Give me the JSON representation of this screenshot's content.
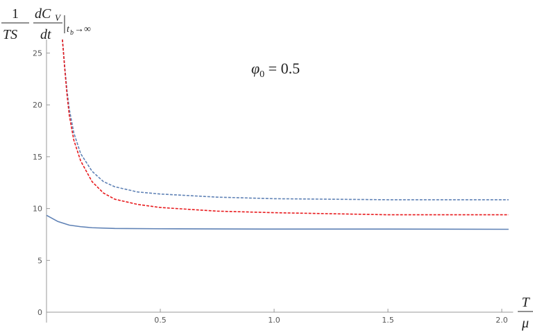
{
  "chart_data": {
    "type": "line",
    "annotation": {
      "symbol": "φ",
      "sub": "0",
      "rest": " = 0.5"
    },
    "y_label": {
      "num1": "1",
      "den1": "TS",
      "num2": "dC",
      "num2_sub": "V",
      "den2": "dt",
      "eval": "t",
      "eval_sub": "b",
      "eval_rest": "→∞"
    },
    "x_label": {
      "num": "T",
      "den": "μ"
    },
    "xlim": [
      0,
      2.05
    ],
    "ylim": [
      -1,
      26.3
    ],
    "xticks": [
      0.5,
      {
        "value": 1,
        "label": "1.0"
      },
      1.5,
      {
        "value": 2,
        "label": "2.0"
      }
    ],
    "yticks": [
      0,
      5,
      10,
      15,
      20,
      25
    ],
    "series": [
      {
        "color": "#5e81b5",
        "dash": false,
        "x": [
          0,
          0.05,
          0.1,
          0.15,
          0.2,
          0.3,
          0.5,
          1.0,
          1.5,
          2.03
        ],
        "values": [
          9.35,
          8.75,
          8.4,
          8.25,
          8.15,
          8.08,
          8.05,
          8.02,
          8.02,
          8.0
        ]
      },
      {
        "color": "#5e81b5",
        "dash": true,
        "x": [
          0.07,
          0.08,
          0.09,
          0.1,
          0.12,
          0.15,
          0.2,
          0.25,
          0.3,
          0.4,
          0.5,
          0.75,
          1.0,
          1.5,
          2.03
        ],
        "values": [
          26.3,
          23.7,
          21.4,
          19.6,
          17.3,
          15.3,
          13.6,
          12.6,
          12.1,
          11.6,
          11.4,
          11.1,
          10.95,
          10.85,
          10.85
        ]
      },
      {
        "color": "#e8191c",
        "dash": true,
        "x": [
          0.07,
          0.08,
          0.09,
          0.1,
          0.12,
          0.15,
          0.2,
          0.25,
          0.3,
          0.4,
          0.5,
          0.75,
          1.0,
          1.5,
          2.03
        ],
        "values": [
          26.3,
          23.5,
          21.0,
          19.0,
          16.6,
          14.6,
          12.6,
          11.5,
          10.9,
          10.4,
          10.1,
          9.75,
          9.6,
          9.4,
          9.4
        ]
      }
    ]
  }
}
